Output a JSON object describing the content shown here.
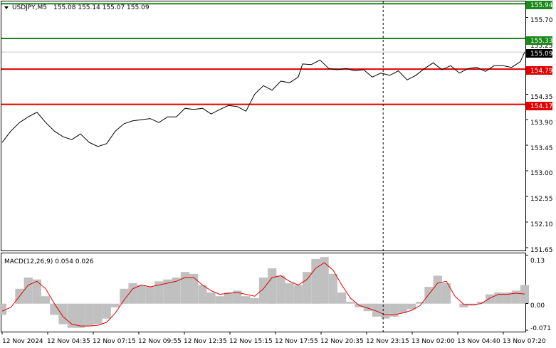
{
  "header": {
    "symbol": "USDJPY,M5",
    "ohlc": "155.08 155.14 155.07 155.09"
  },
  "indicator": {
    "label": "MACD(12,26,9) 0.054 0.026"
  },
  "colors": {
    "price_line": "#000000",
    "support_line": "#e00000",
    "resistance_line": "#1a8a1a",
    "histogram": "#c0c0c0",
    "signal_line": "#e00000",
    "current_tag_bg": "#000000",
    "gridline": "#c8c8c8"
  },
  "chart_data": [
    {
      "type": "line",
      "name": "price",
      "ylim": [
        151.6,
        155.98
      ],
      "yticks": [
        "155.70",
        "155.25",
        "154.35",
        "153.90",
        "153.45",
        "153.00",
        "152.55",
        "152.10",
        "151.65"
      ],
      "x_labels": [
        "12 Nov 2024",
        "12 Nov 04:35",
        "12 Nov 07:15",
        "12 Nov 09:55",
        "12 Nov 12:35",
        "12 Nov 15:15",
        "12 Nov 17:55",
        "12 Nov 20:35",
        "12 Nov 23:15",
        "13 Nov 02:00",
        "13 Nov 04:40",
        "13 Nov 07:20"
      ],
      "x_index_range": [
        0,
        240
      ],
      "x": [
        0,
        4,
        8,
        12,
        16,
        20,
        24,
        28,
        32,
        36,
        40,
        44,
        48,
        52,
        56,
        60,
        64,
        68,
        72,
        76,
        80,
        84,
        88,
        92,
        96,
        100,
        104,
        108,
        112,
        116,
        120,
        124,
        128,
        132,
        136,
        138,
        142,
        146,
        150,
        154,
        158,
        162,
        166,
        170,
        174,
        178,
        182,
        186,
        190,
        194,
        198,
        202,
        206,
        210,
        214,
        218,
        222,
        226,
        230,
        234,
        238,
        240
      ],
      "y": [
        153.5,
        153.7,
        153.85,
        153.95,
        154.03,
        153.85,
        153.7,
        153.6,
        153.55,
        153.65,
        153.5,
        153.43,
        153.48,
        153.7,
        153.83,
        153.88,
        153.9,
        153.92,
        153.85,
        153.95,
        153.95,
        154.1,
        154.08,
        154.1,
        154.0,
        154.08,
        154.15,
        154.13,
        154.05,
        154.35,
        154.5,
        154.42,
        154.58,
        154.55,
        154.65,
        154.88,
        154.87,
        154.95,
        154.8,
        154.78,
        154.8,
        154.76,
        154.78,
        154.65,
        154.72,
        154.68,
        154.76,
        154.6,
        154.68,
        154.8,
        154.9,
        154.78,
        154.85,
        154.72,
        154.8,
        154.82,
        154.75,
        154.85,
        154.85,
        154.82,
        154.92,
        155.09
      ],
      "series": [
        {
          "name": "",
          "kind": "horizontal",
          "value": 155.94,
          "label": "155.94",
          "color": "#1a8a1a"
        },
        {
          "name": "",
          "kind": "horizontal",
          "value": 155.33,
          "label": "155.33",
          "color": "#1a8a1a"
        },
        {
          "name": "",
          "kind": "horizontal",
          "value": 154.79,
          "label": "154.79",
          "color": "#e00000"
        },
        {
          "name": "",
          "kind": "horizontal",
          "value": 154.17,
          "label": "154.17",
          "color": "#e00000"
        }
      ],
      "current_price": {
        "value": 155.09,
        "label": "155.09"
      },
      "vertical_marker_index": 175
    },
    {
      "type": "bar",
      "name": "MACD",
      "ylim": [
        -0.075,
        0.135
      ],
      "yticks": [
        "0.13",
        "0.00",
        "-0.071"
      ],
      "x_index_range": [
        0,
        240
      ],
      "x": [
        0,
        4,
        8,
        12,
        16,
        20,
        24,
        28,
        32,
        36,
        40,
        44,
        48,
        52,
        56,
        60,
        64,
        68,
        72,
        76,
        80,
        84,
        88,
        92,
        96,
        100,
        104,
        108,
        112,
        116,
        120,
        124,
        128,
        132,
        136,
        140,
        144,
        148,
        152,
        156,
        160,
        164,
        168,
        172,
        176,
        180,
        184,
        188,
        192,
        196,
        200,
        204,
        208,
        212,
        216,
        220,
        224,
        228,
        232,
        236,
        240
      ],
      "histogram": [
        -0.03,
        0.0,
        0.04,
        0.07,
        0.065,
        0.02,
        -0.03,
        -0.055,
        -0.065,
        -0.065,
        -0.06,
        -0.055,
        -0.04,
        -0.01,
        0.04,
        0.055,
        0.05,
        0.045,
        0.06,
        0.065,
        0.07,
        0.085,
        0.08,
        0.05,
        0.03,
        0.02,
        0.03,
        0.035,
        0.02,
        0.015,
        0.07,
        0.095,
        0.075,
        0.055,
        0.05,
        0.085,
        0.12,
        0.125,
        0.08,
        0.03,
        0.005,
        -0.01,
        -0.02,
        -0.035,
        -0.04,
        -0.035,
        -0.025,
        -0.015,
        0.005,
        0.045,
        0.075,
        0.055,
        0.0,
        -0.01,
        -0.005,
        0.005,
        0.025,
        0.03,
        0.03,
        0.035,
        0.05
      ],
      "signal": [
        -0.02,
        -0.01,
        0.02,
        0.05,
        0.06,
        0.04,
        0.0,
        -0.035,
        -0.055,
        -0.06,
        -0.06,
        -0.058,
        -0.05,
        -0.025,
        0.01,
        0.04,
        0.05,
        0.045,
        0.05,
        0.055,
        0.06,
        0.07,
        0.07,
        0.05,
        0.035,
        0.025,
        0.028,
        0.03,
        0.025,
        0.02,
        0.04,
        0.07,
        0.075,
        0.06,
        0.05,
        0.065,
        0.095,
        0.11,
        0.09,
        0.05,
        0.015,
        -0.005,
        -0.012,
        -0.02,
        -0.03,
        -0.03,
        -0.025,
        -0.018,
        -0.005,
        0.025,
        0.055,
        0.06,
        0.02,
        -0.002,
        -0.003,
        0.0,
        0.015,
        0.025,
        0.025,
        0.028,
        0.026
      ]
    }
  ]
}
